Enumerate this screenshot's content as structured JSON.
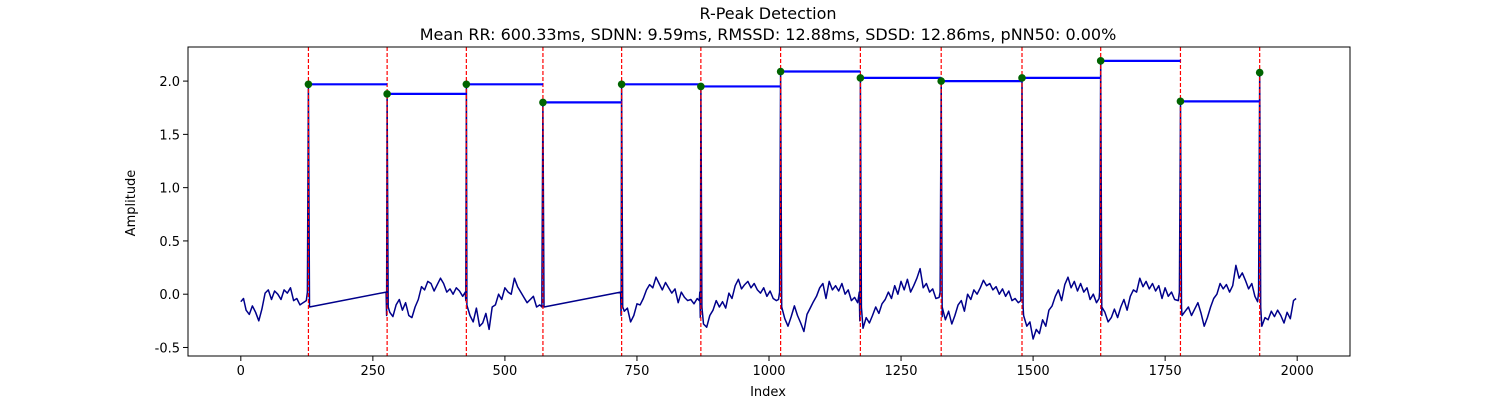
{
  "chart_data": {
    "type": "line",
    "title": "R-Peak Detection",
    "subtitle": "Mean RR: 600.33ms, SDNN: 9.59ms, RMSSD: 12.88ms, SDSD: 12.86ms, pNN50: 0.00%",
    "xlabel": "Index",
    "ylabel": "Amplitude",
    "xlim": [
      -100,
      2100
    ],
    "ylim": [
      -0.58,
      2.32
    ],
    "xticks": [
      0,
      250,
      500,
      750,
      1000,
      1250,
      1500,
      1750,
      2000
    ],
    "yticks": [
      -0.5,
      0.0,
      0.5,
      1.0,
      1.5,
      2.0
    ],
    "grid": false,
    "colors": {
      "signal": "#00008b",
      "peak_marker": "#006400",
      "peak_line": "#ff0000",
      "rr_bar": "#0000ff"
    },
    "baseline": [
      [
        0,
        -0.07
      ],
      [
        5,
        -0.04
      ],
      [
        10,
        -0.15
      ],
      [
        16,
        -0.19
      ],
      [
        22,
        -0.11
      ],
      [
        28,
        -0.17
      ],
      [
        34,
        -0.25
      ],
      [
        40,
        -0.14
      ],
      [
        46,
        0.01
      ],
      [
        52,
        0.04
      ],
      [
        58,
        -0.05
      ],
      [
        64,
        0.03
      ],
      [
        70,
        0.0
      ],
      [
        76,
        -0.05
      ],
      [
        82,
        0.04
      ],
      [
        88,
        0.01
      ],
      [
        94,
        0.06
      ],
      [
        100,
        -0.06
      ],
      [
        106,
        -0.04
      ],
      [
        112,
        -0.1
      ],
      [
        118,
        -0.08
      ],
      [
        124,
        -0.06
      ],
      [
        276,
        -0.2
      ],
      [
        282,
        -0.17
      ],
      [
        288,
        -0.21
      ],
      [
        294,
        -0.1
      ],
      [
        300,
        -0.05
      ],
      [
        306,
        -0.15
      ],
      [
        312,
        -0.08
      ],
      [
        318,
        -0.2
      ],
      [
        324,
        -0.22
      ],
      [
        330,
        -0.12
      ],
      [
        336,
        -0.05
      ],
      [
        342,
        0.07
      ],
      [
        348,
        0.04
      ],
      [
        354,
        0.12
      ],
      [
        360,
        0.1
      ],
      [
        366,
        0.03
      ],
      [
        372,
        0.09
      ],
      [
        378,
        0.15
      ],
      [
        384,
        0.1
      ],
      [
        390,
        0.02
      ],
      [
        396,
        0.05
      ],
      [
        402,
        0.0
      ],
      [
        408,
        0.06
      ],
      [
        414,
        0.03
      ],
      [
        420,
        -0.02
      ],
      [
        426,
        -0.06
      ],
      [
        428,
        -0.1
      ],
      [
        434,
        -0.2
      ],
      [
        440,
        -0.26
      ],
      [
        446,
        -0.13
      ],
      [
        452,
        -0.3
      ],
      [
        458,
        -0.27
      ],
      [
        464,
        -0.18
      ],
      [
        470,
        -0.33
      ],
      [
        476,
        -0.12
      ],
      [
        482,
        -0.1
      ],
      [
        488,
        0.0
      ],
      [
        494,
        -0.05
      ],
      [
        500,
        0.06
      ],
      [
        506,
        0.02
      ],
      [
        512,
        0.0
      ],
      [
        518,
        0.15
      ],
      [
        524,
        0.07
      ],
      [
        530,
        0.02
      ],
      [
        536,
        -0.03
      ],
      [
        542,
        -0.08
      ],
      [
        548,
        -0.05
      ],
      [
        554,
        -0.02
      ],
      [
        560,
        -0.12
      ],
      [
        566,
        -0.1
      ],
      [
        570,
        -0.12
      ],
      [
        720,
        -0.2
      ],
      [
        726,
        -0.16
      ],
      [
        732,
        -0.13
      ],
      [
        738,
        -0.26
      ],
      [
        744,
        -0.2
      ],
      [
        750,
        -0.09
      ],
      [
        756,
        -0.1
      ],
      [
        762,
        -0.04
      ],
      [
        768,
        0.04
      ],
      [
        774,
        0.09
      ],
      [
        780,
        0.06
      ],
      [
        786,
        0.16
      ],
      [
        792,
        0.1
      ],
      [
        798,
        0.04
      ],
      [
        804,
        0.11
      ],
      [
        810,
        0.06
      ],
      [
        816,
        0.01
      ],
      [
        822,
        0.05
      ],
      [
        828,
        -0.08
      ],
      [
        834,
        0.02
      ],
      [
        840,
        -0.03
      ],
      [
        846,
        -0.06
      ],
      [
        852,
        -0.05
      ],
      [
        858,
        -0.09
      ],
      [
        864,
        -0.04
      ],
      [
        868,
        -0.06
      ],
      [
        870,
        -0.22
      ],
      [
        876,
        -0.28
      ],
      [
        882,
        -0.31
      ],
      [
        888,
        -0.2
      ],
      [
        894,
        -0.15
      ],
      [
        900,
        -0.06
      ],
      [
        906,
        -0.12
      ],
      [
        912,
        -0.07
      ],
      [
        918,
        -0.13
      ],
      [
        924,
        0.01
      ],
      [
        930,
        -0.04
      ],
      [
        936,
        0.08
      ],
      [
        942,
        0.14
      ],
      [
        948,
        0.05
      ],
      [
        954,
        0.09
      ],
      [
        960,
        0.12
      ],
      [
        966,
        0.06
      ],
      [
        972,
        0.1
      ],
      [
        978,
        0.04
      ],
      [
        984,
        0.01
      ],
      [
        990,
        0.06
      ],
      [
        996,
        -0.02
      ],
      [
        1002,
        0.03
      ],
      [
        1008,
        -0.04
      ],
      [
        1014,
        -0.06
      ],
      [
        1018,
        -0.05
      ],
      [
        1024,
        -0.14
      ],
      [
        1030,
        -0.23
      ],
      [
        1036,
        -0.3
      ],
      [
        1042,
        -0.21
      ],
      [
        1048,
        -0.11
      ],
      [
        1054,
        -0.2
      ],
      [
        1060,
        -0.27
      ],
      [
        1066,
        -0.35
      ],
      [
        1072,
        -0.19
      ],
      [
        1078,
        -0.13
      ],
      [
        1084,
        -0.07
      ],
      [
        1090,
        -0.02
      ],
      [
        1096,
        0.06
      ],
      [
        1102,
        0.1
      ],
      [
        1108,
        -0.04
      ],
      [
        1114,
        0.12
      ],
      [
        1120,
        0.04
      ],
      [
        1126,
        0.08
      ],
      [
        1132,
        0.03
      ],
      [
        1138,
        0.1
      ],
      [
        1144,
        0.0
      ],
      [
        1150,
        0.04
      ],
      [
        1156,
        -0.06
      ],
      [
        1162,
        -0.03
      ],
      [
        1168,
        -0.08
      ],
      [
        1172,
        -0.25
      ],
      [
        1178,
        -0.32
      ],
      [
        1184,
        -0.22
      ],
      [
        1190,
        -0.27
      ],
      [
        1196,
        -0.2
      ],
      [
        1202,
        -0.12
      ],
      [
        1208,
        -0.18
      ],
      [
        1214,
        -0.09
      ],
      [
        1220,
        -0.05
      ],
      [
        1226,
        0.02
      ],
      [
        1232,
        -0.04
      ],
      [
        1238,
        0.08
      ],
      [
        1244,
        0.0
      ],
      [
        1250,
        0.12
      ],
      [
        1256,
        0.04
      ],
      [
        1262,
        0.14
      ],
      [
        1268,
        0.02
      ],
      [
        1274,
        0.08
      ],
      [
        1280,
        0.15
      ],
      [
        1286,
        0.24
      ],
      [
        1292,
        0.06
      ],
      [
        1298,
        0.1
      ],
      [
        1304,
        0.02
      ],
      [
        1310,
        0.05
      ],
      [
        1316,
        -0.04
      ],
      [
        1322,
        -0.03
      ],
      [
        1328,
        -0.21
      ],
      [
        1334,
        -0.24
      ],
      [
        1340,
        -0.16
      ],
      [
        1346,
        -0.28
      ],
      [
        1352,
        -0.2
      ],
      [
        1358,
        -0.1
      ],
      [
        1364,
        -0.06
      ],
      [
        1370,
        -0.16
      ],
      [
        1376,
        0.0
      ],
      [
        1382,
        -0.05
      ],
      [
        1388,
        0.04
      ],
      [
        1394,
        0.0
      ],
      [
        1400,
        0.06
      ],
      [
        1406,
        0.13
      ],
      [
        1412,
        0.08
      ],
      [
        1418,
        0.1
      ],
      [
        1424,
        0.04
      ],
      [
        1430,
        0.07
      ],
      [
        1436,
        0.0
      ],
      [
        1442,
        0.05
      ],
      [
        1448,
        -0.02
      ],
      [
        1454,
        0.03
      ],
      [
        1460,
        -0.06
      ],
      [
        1466,
        -0.04
      ],
      [
        1472,
        -0.08
      ],
      [
        1477,
        -0.06
      ],
      [
        1482,
        -0.2
      ],
      [
        1488,
        -0.3
      ],
      [
        1494,
        -0.26
      ],
      [
        1500,
        -0.42
      ],
      [
        1506,
        -0.33
      ],
      [
        1512,
        -0.37
      ],
      [
        1518,
        -0.24
      ],
      [
        1524,
        -0.3
      ],
      [
        1530,
        -0.15
      ],
      [
        1536,
        -0.11
      ],
      [
        1542,
        -0.02
      ],
      [
        1548,
        0.04
      ],
      [
        1554,
        -0.06
      ],
      [
        1560,
        0.09
      ],
      [
        1566,
        0.16
      ],
      [
        1572,
        0.06
      ],
      [
        1578,
        0.12
      ],
      [
        1584,
        0.03
      ],
      [
        1590,
        0.1
      ],
      [
        1596,
        0.02
      ],
      [
        1602,
        0.06
      ],
      [
        1608,
        -0.05
      ],
      [
        1614,
        0.0
      ],
      [
        1620,
        -0.08
      ],
      [
        1625,
        -0.04
      ],
      [
        1630,
        -0.2
      ],
      [
        1636,
        -0.17
      ],
      [
        1642,
        -0.26
      ],
      [
        1648,
        -0.22
      ],
      [
        1654,
        -0.14
      ],
      [
        1660,
        -0.22
      ],
      [
        1666,
        -0.12
      ],
      [
        1672,
        -0.05
      ],
      [
        1678,
        -0.15
      ],
      [
        1684,
        -0.02
      ],
      [
        1690,
        0.04
      ],
      [
        1696,
        0.02
      ],
      [
        1702,
        0.15
      ],
      [
        1708,
        0.07
      ],
      [
        1714,
        0.12
      ],
      [
        1720,
        0.05
      ],
      [
        1726,
        0.1
      ],
      [
        1732,
        0.03
      ],
      [
        1738,
        0.08
      ],
      [
        1744,
        -0.04
      ],
      [
        1750,
        0.06
      ],
      [
        1756,
        -0.02
      ],
      [
        1762,
        0.02
      ],
      [
        1768,
        -0.05
      ],
      [
        1775,
        -0.06
      ],
      [
        1782,
        -0.2
      ],
      [
        1788,
        -0.16
      ],
      [
        1794,
        -0.12
      ],
      [
        1800,
        -0.2
      ],
      [
        1806,
        -0.14
      ],
      [
        1812,
        -0.08
      ],
      [
        1818,
        -0.18
      ],
      [
        1824,
        -0.3
      ],
      [
        1830,
        -0.22
      ],
      [
        1836,
        -0.12
      ],
      [
        1842,
        -0.04
      ],
      [
        1848,
        0.0
      ],
      [
        1854,
        0.1
      ],
      [
        1860,
        0.05
      ],
      [
        1866,
        0.09
      ],
      [
        1872,
        0.02
      ],
      [
        1878,
        0.08
      ],
      [
        1884,
        0.27
      ],
      [
        1890,
        0.15
      ],
      [
        1896,
        0.2
      ],
      [
        1902,
        0.13
      ],
      [
        1908,
        0.05
      ],
      [
        1914,
        0.1
      ],
      [
        1920,
        -0.02
      ],
      [
        1925,
        -0.07
      ],
      [
        1933,
        -0.3
      ],
      [
        1939,
        -0.22
      ],
      [
        1945,
        -0.24
      ],
      [
        1951,
        -0.16
      ],
      [
        1957,
        -0.21
      ],
      [
        1963,
        -0.15
      ],
      [
        1969,
        -0.2
      ],
      [
        1975,
        -0.27
      ],
      [
        1981,
        -0.17
      ],
      [
        1987,
        -0.23
      ],
      [
        1993,
        -0.06
      ],
      [
        1998,
        -0.04
      ]
    ],
    "r_peaks": [
      {
        "x": 128,
        "y": 1.97
      },
      {
        "x": 277,
        "y": 1.88
      },
      {
        "x": 427,
        "y": 1.97
      },
      {
        "x": 572,
        "y": 1.8
      },
      {
        "x": 721,
        "y": 1.97
      },
      {
        "x": 871,
        "y": 1.95
      },
      {
        "x": 1022,
        "y": 2.09
      },
      {
        "x": 1173,
        "y": 2.03
      },
      {
        "x": 1326,
        "y": 2.0
      },
      {
        "x": 1479,
        "y": 2.03
      },
      {
        "x": 1628,
        "y": 2.19
      },
      {
        "x": 1779,
        "y": 1.81
      },
      {
        "x": 1929,
        "y": 2.08
      }
    ]
  }
}
